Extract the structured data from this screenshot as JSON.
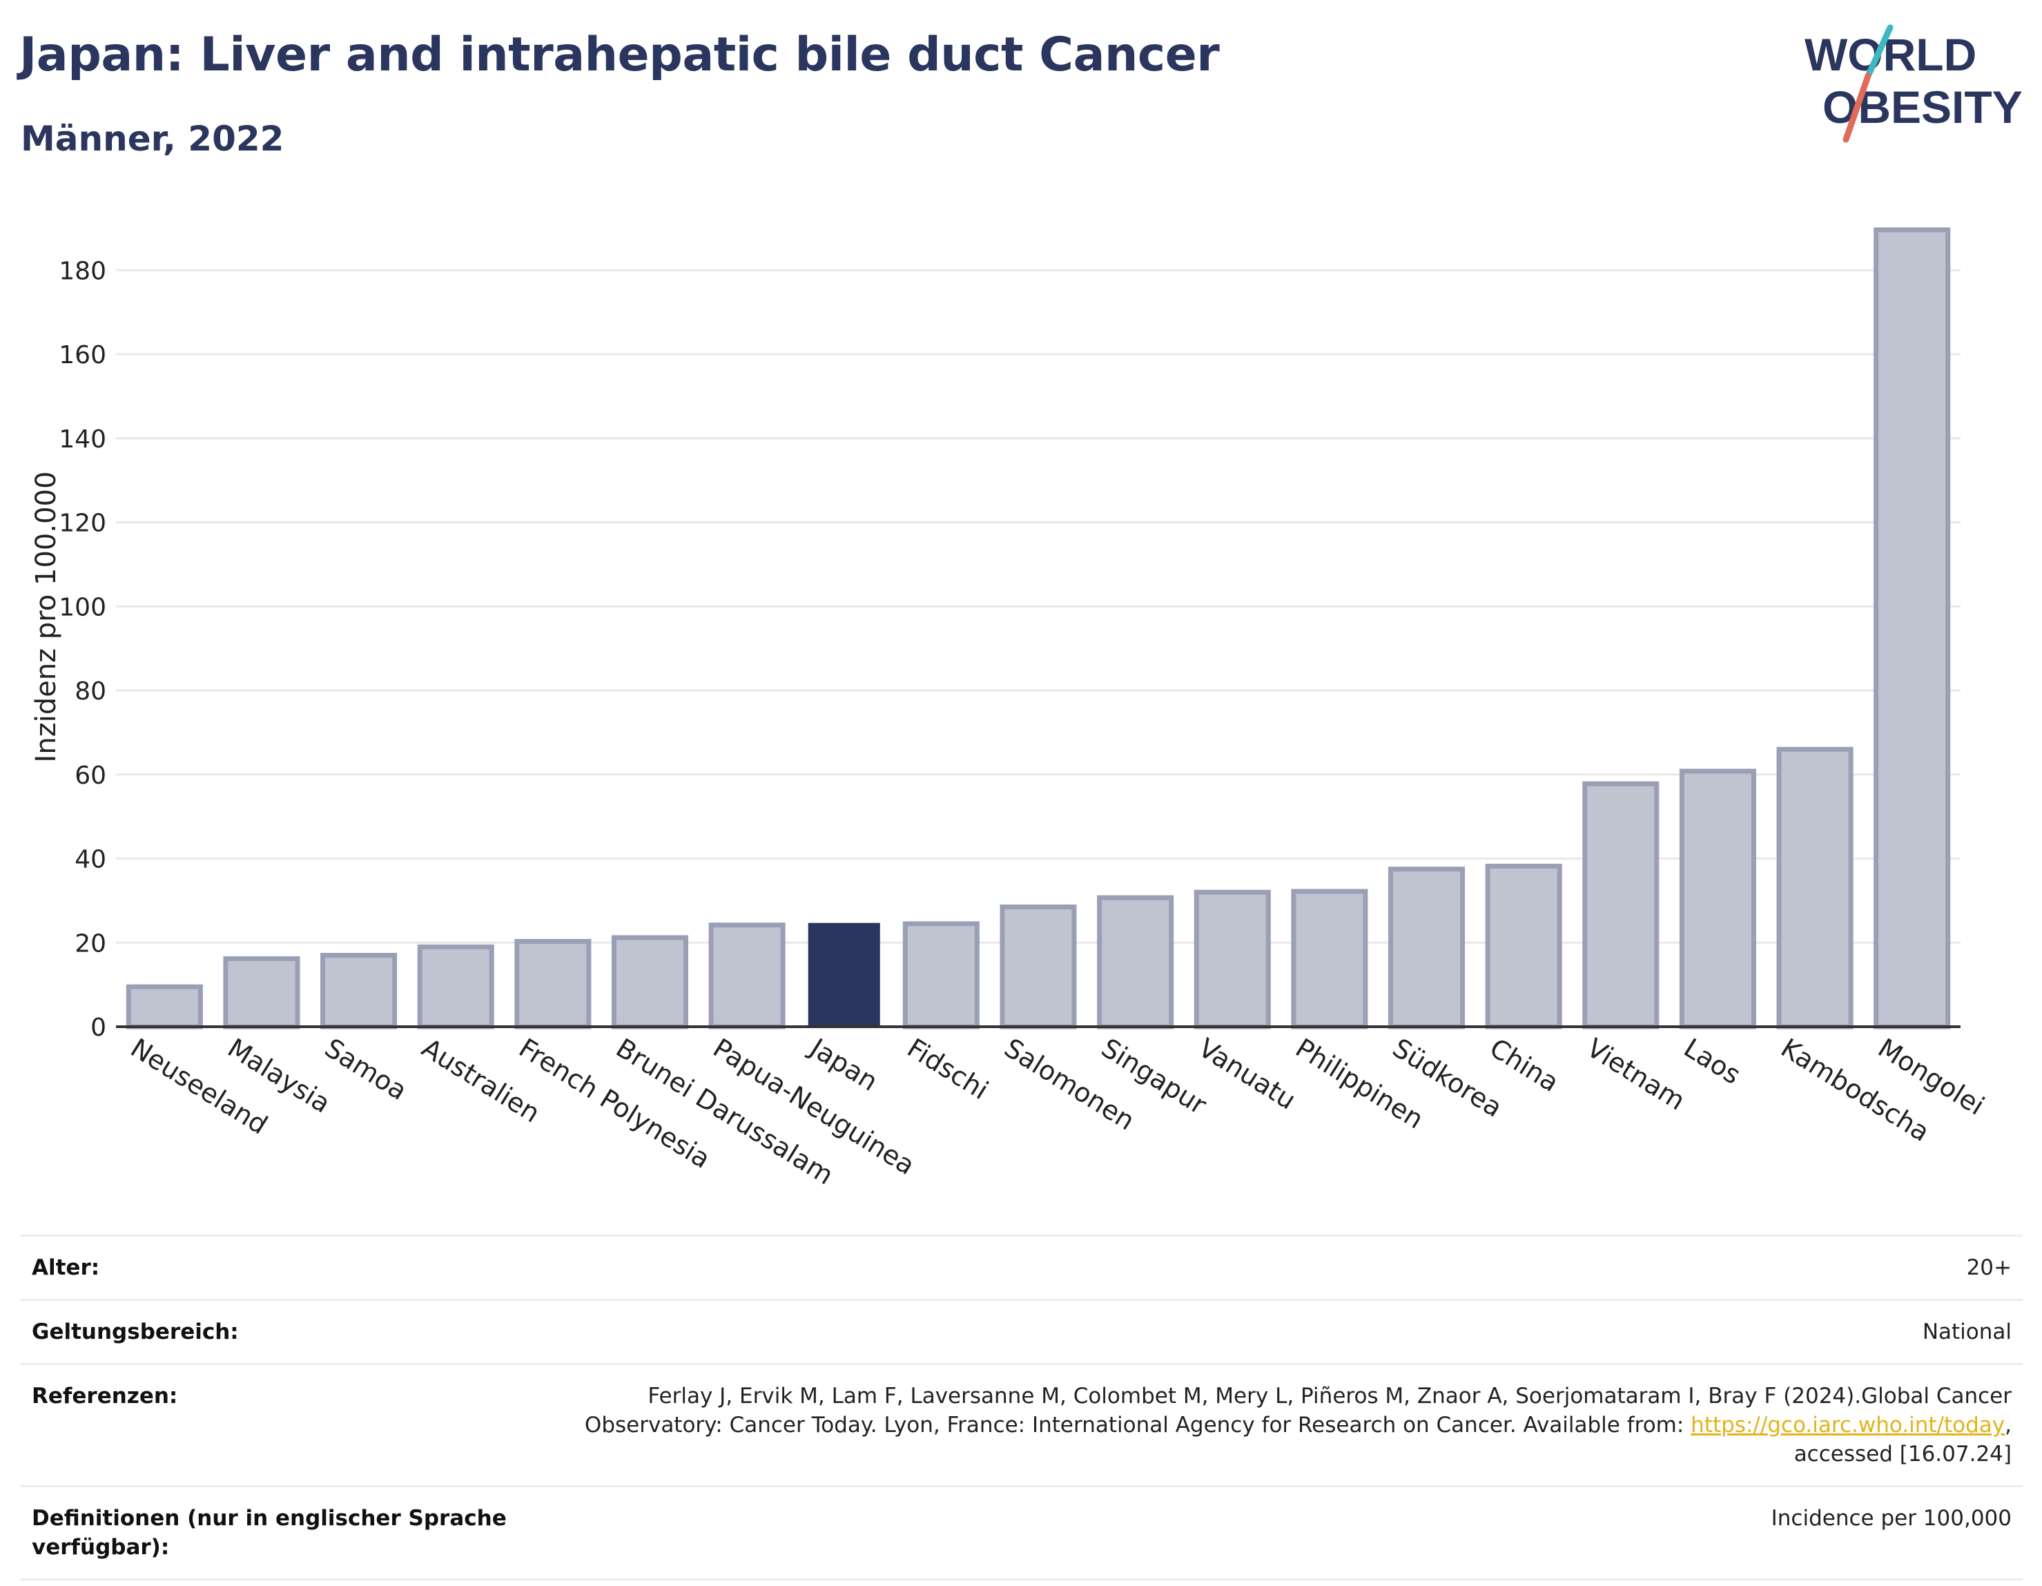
{
  "header": {
    "title": "Japan: Liver and intrahepatic bile duct Cancer",
    "subtitle": "Männer, 2022"
  },
  "logo": {
    "line1": "WORLD",
    "line2": "OBESITY",
    "accent_colors": [
      "#3fb8c4",
      "#e26a5a"
    ]
  },
  "chart_data": {
    "type": "bar",
    "categories": [
      "Neuseeland",
      "Malaysia",
      "Samoa",
      "Australien",
      "French Polynesia",
      "Brunei Darussalam",
      "Papua-Neuguinea",
      "Japan",
      "Fidschi",
      "Salomonen",
      "Singapur",
      "Vanuatu",
      "Philippinen",
      "Südkorea",
      "China",
      "Vietnam",
      "Laos",
      "Kambodscha",
      "Mongolei"
    ],
    "values": [
      9.5,
      16.2,
      17.0,
      19.0,
      20.3,
      21.2,
      24.2,
      24.7,
      24.5,
      28.5,
      30.7,
      32.0,
      32.2,
      37.5,
      38.2,
      57.8,
      60.8,
      66.0,
      189.6
    ],
    "highlight": "Japan",
    "ylabel": "Inzidenz pro 100.000",
    "xlabel": "",
    "ylim": [
      0,
      195
    ],
    "yticks": [
      0,
      20,
      40,
      60,
      80,
      100,
      120,
      140,
      160,
      180
    ],
    "grid": true,
    "colors": {
      "bar": "#c0c3d0",
      "bar_edge": "#9a9fb6",
      "highlight": "#2b365e",
      "grid": "#e8e8e8",
      "axis": "#333333"
    }
  },
  "meta": {
    "age_label": "Alter:",
    "age_value": "20+",
    "scope_label": "Geltungsbereich:",
    "scope_value": "National",
    "refs_label": "Referenzen:",
    "refs_text_1": "Ferlay J, Ervik M, Lam F, Laversanne M, Colombet M, Mery L, Piñeros M, Znaor A, Soerjomataram I, Bray F (2024).Global Cancer Observatory: Cancer Today. Lyon, France: International Agency for Research on Cancer. Available from: ",
    "refs_link": "https://gco.iarc.who.int/today",
    "refs_text_2": ", accessed [16.07.24]",
    "defs_label": "Definitionen (nur in englischer Sprache verfügbar):",
    "defs_value": "Incidence per 100,000"
  }
}
